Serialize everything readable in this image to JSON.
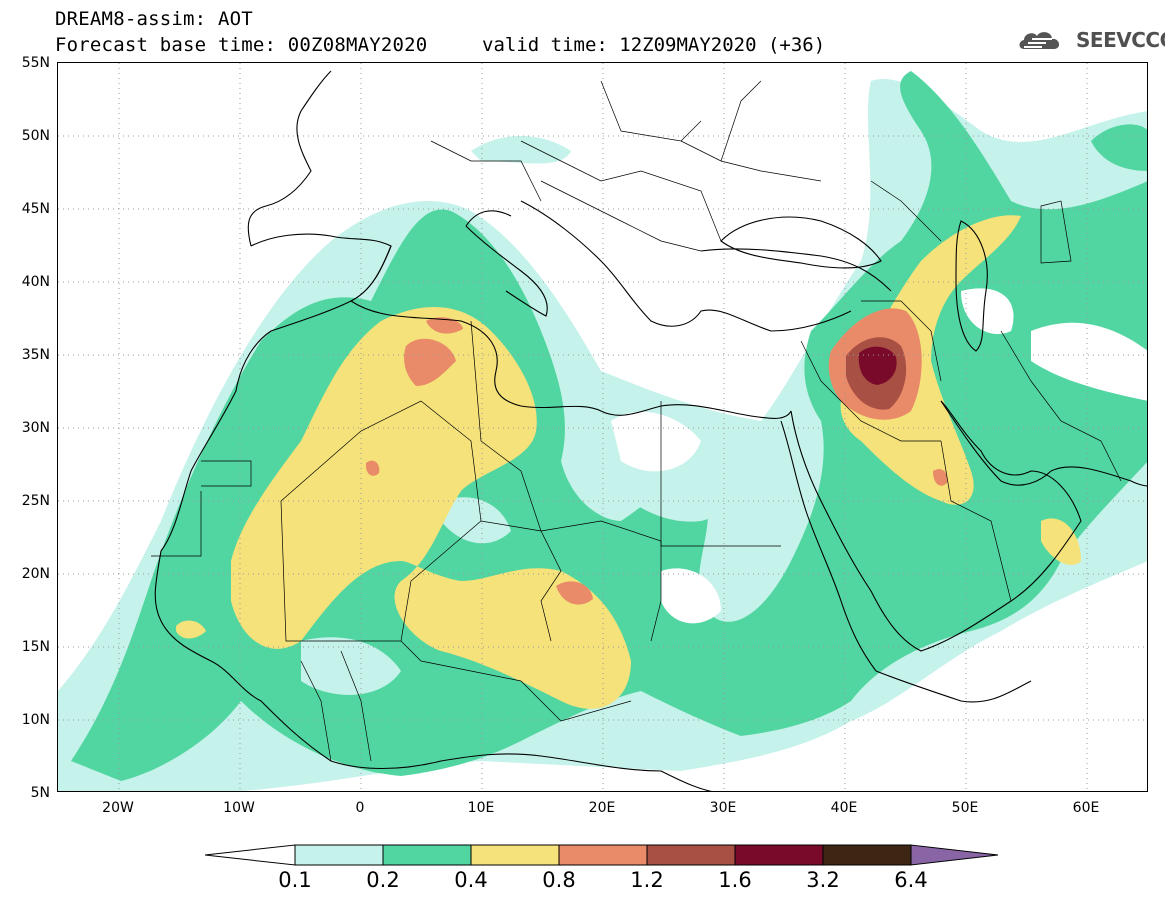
{
  "header": {
    "title_line1": "DREAM8-assim: AOT",
    "title_line2": "Forecast base time: 00Z08MAY2020",
    "valid_time": "valid time: 12Z09MAY2020 (+36)",
    "brand": "SEEVCCC",
    "brand_icon": "cloud-icon"
  },
  "map": {
    "lat_labels": [
      "55N",
      "50N",
      "45N",
      "40N",
      "35N",
      "30N",
      "25N",
      "20N",
      "15N",
      "10N",
      "5N"
    ],
    "lon_labels": [
      "20W",
      "10W",
      "0",
      "10E",
      "20E",
      "30E",
      "40E",
      "50E",
      "60E"
    ],
    "lat_range": [
      5,
      55
    ],
    "lon_range": [
      -25,
      65
    ],
    "gridlines": "dotted",
    "borders": "country outlines"
  },
  "colorbar": {
    "levels": [
      "0.1",
      "0.2",
      "0.4",
      "0.8",
      "1.2",
      "1.6",
      "3.2",
      "6.4"
    ],
    "colors": [
      "#c5f2ea",
      "#52d6a1",
      "#f5e27a",
      "#e98a68",
      "#a85043",
      "#7a0a2a",
      "#3d2714",
      "#8a65a5"
    ],
    "lower_extend_color": "#ffffff",
    "upper_extend_color": "#8a65a5"
  }
}
